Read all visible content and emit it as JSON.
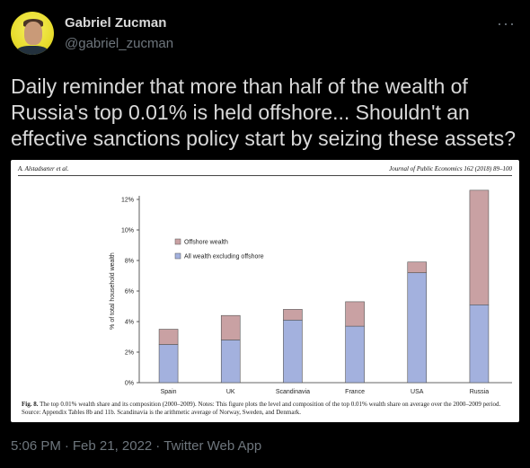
{
  "tweet": {
    "author_name": "Gabriel Zucman",
    "author_handle": "@gabriel_zucman",
    "more_icon": "···",
    "text": "Daily reminder that more than half of the wealth of Russia's top 0.01% is held offshore... Shouldn't an effective sanctions policy start by seizing these assets?",
    "time": "5:06 PM",
    "date": "Feb 21, 2022",
    "source": "Twitter Web App"
  },
  "figure": {
    "header_left": "A. Alstadsæter et al.",
    "header_right": "Journal of Public Economics 162 (2018) 89–100",
    "caption_label": "Fig. 8.",
    "caption_text": "The top 0.01% wealth share and its composition (2000–2009). Notes: This figure plots the level and composition of the top 0.01% wealth share on average over the 2000–2009 period. Source: Appendix Tables 8b and 11b. Scandinavia is the arithmetic average of Norway, Sweden, and Denmark."
  },
  "chart_data": {
    "type": "bar",
    "stacked": true,
    "categories": [
      "Spain",
      "UK",
      "Scandinavia",
      "France",
      "USA",
      "Russia"
    ],
    "series": [
      {
        "name": "All wealth excluding offshore",
        "values": [
          2.5,
          2.8,
          4.1,
          3.7,
          7.2,
          5.1
        ],
        "color": "#a3b1de"
      },
      {
        "name": "Offshore wealth",
        "values": [
          1.0,
          1.6,
          0.7,
          1.6,
          0.7,
          7.5
        ],
        "color": "#c9a1a3"
      }
    ],
    "ylabel": "% of total household wealth",
    "ylim": [
      0,
      12
    ],
    "yticks": [
      "0%",
      "2%",
      "4%",
      "6%",
      "8%",
      "10%",
      "12%"
    ],
    "legend_position": "top-left",
    "grid": false
  }
}
